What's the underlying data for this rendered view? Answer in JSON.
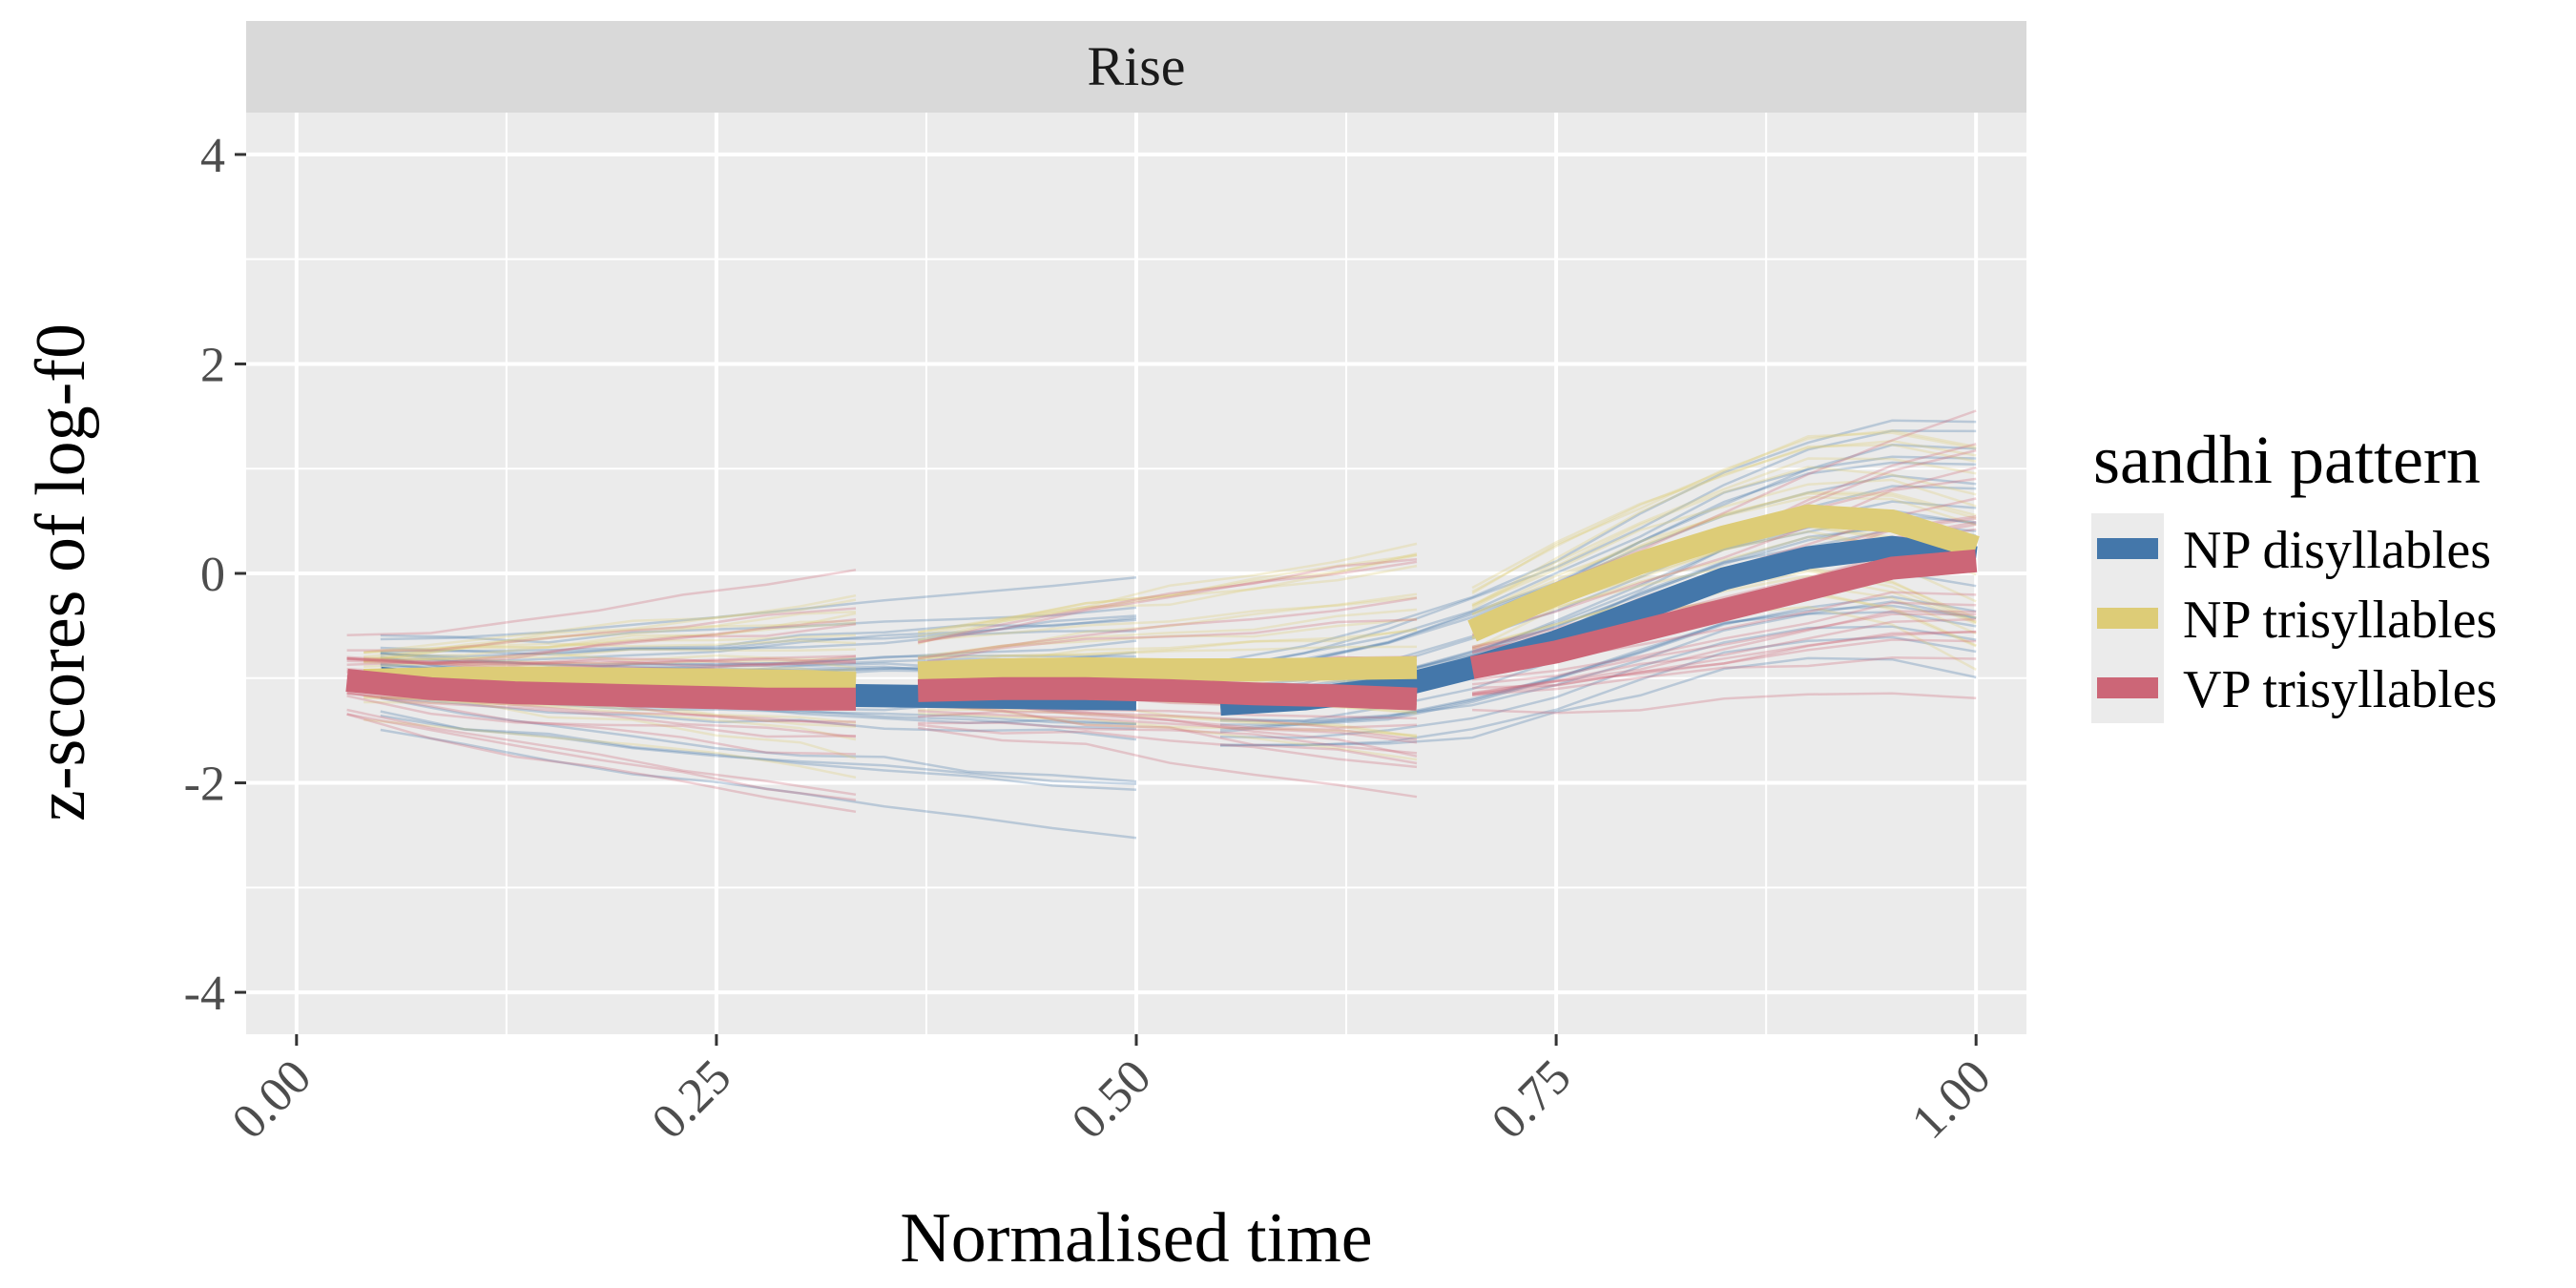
{
  "chart_data": {
    "type": "line",
    "facet_label": "Rise",
    "xlabel": "Normalised time",
    "ylabel": "z-scores of log-f0",
    "xlim": [
      -0.03,
      1.03
    ],
    "ylim": [
      -4.4,
      4.4
    ],
    "x_ticks": [
      0.0,
      0.25,
      0.5,
      0.75,
      1.0
    ],
    "x_tick_labels": [
      "0.00",
      "0.25",
      "0.50",
      "0.75",
      "1.00"
    ],
    "y_ticks": [
      -4,
      -2,
      0,
      2,
      4
    ],
    "y_tick_labels": [
      "-4",
      "-2",
      "0",
      "2",
      "4"
    ],
    "grid": true,
    "legend": {
      "title": "sandhi pattern",
      "position": "right",
      "entries": [
        "NP disyllables",
        "NP trisyllables",
        "VP trisyllables"
      ]
    },
    "colors": {
      "NP disyllables": "#4477aa",
      "NP trisyllables": "#ddcc77",
      "VP trisyllables": "#cc6677"
    },
    "series": [
      {
        "name": "NP disyllables",
        "segments": [
          {
            "x": [
              0.05,
              0.1,
              0.15,
              0.2,
              0.25,
              0.3,
              0.35,
              0.4,
              0.45,
              0.5
            ],
            "y": [
              -1.0,
              -1.08,
              -1.12,
              -1.14,
              -1.15,
              -1.16,
              -1.17,
              -1.18,
              -1.19,
              -1.2
            ]
          },
          {
            "x": [
              0.55,
              0.6,
              0.65,
              0.7,
              0.75,
              0.8,
              0.85,
              0.9,
              0.95,
              1.0
            ],
            "y": [
              -1.25,
              -1.2,
              -1.1,
              -0.9,
              -0.65,
              -0.35,
              -0.05,
              0.15,
              0.25,
              0.15
            ]
          }
        ]
      },
      {
        "name": "NP trisyllables",
        "segments": [
          {
            "x": [
              0.04,
              0.1,
              0.15,
              0.2,
              0.25,
              0.3,
              0.333
            ],
            "y": [
              -1.02,
              -1.0,
              -1.0,
              -1.01,
              -1.02,
              -1.03,
              -1.05
            ]
          },
          {
            "x": [
              0.37,
              0.42,
              0.47,
              0.52,
              0.57,
              0.62,
              0.667
            ],
            "y": [
              -0.95,
              -0.92,
              -0.91,
              -0.92,
              -0.92,
              -0.91,
              -0.9
            ]
          },
          {
            "x": [
              0.7,
              0.75,
              0.8,
              0.85,
              0.9,
              0.95,
              1.0
            ],
            "y": [
              -0.55,
              -0.2,
              0.1,
              0.35,
              0.55,
              0.5,
              0.25
            ]
          }
        ]
      },
      {
        "name": "VP trisyllables",
        "segments": [
          {
            "x": [
              0.03,
              0.08,
              0.13,
              0.18,
              0.23,
              0.28,
              0.333
            ],
            "y": [
              -1.02,
              -1.1,
              -1.14,
              -1.16,
              -1.18,
              -1.2,
              -1.2
            ]
          },
          {
            "x": [
              0.37,
              0.42,
              0.47,
              0.52,
              0.57,
              0.62,
              0.667
            ],
            "y": [
              -1.12,
              -1.1,
              -1.1,
              -1.12,
              -1.15,
              -1.17,
              -1.2
            ]
          },
          {
            "x": [
              0.7,
              0.75,
              0.8,
              0.85,
              0.9,
              0.95,
              1.0
            ],
            "y": [
              -0.9,
              -0.75,
              -0.55,
              -0.35,
              -0.15,
              0.05,
              0.12
            ]
          }
        ]
      }
    ]
  }
}
